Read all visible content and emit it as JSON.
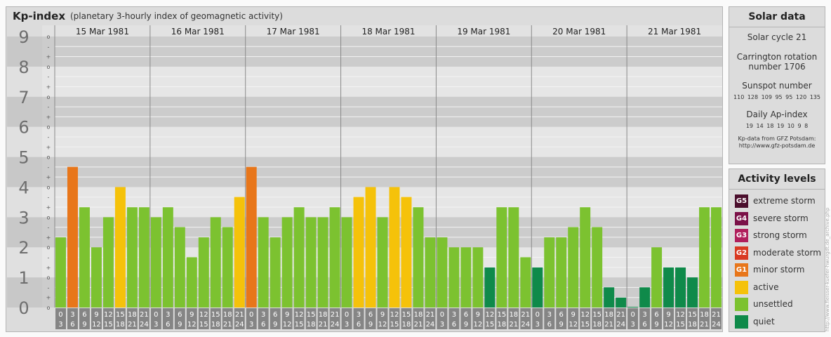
{
  "title": "Kp-index",
  "subtitle": "(planetary 3-hourly index of geomagnetic activity)",
  "solar": {
    "heading": "Solar data",
    "cycle": "Solar cycle 21",
    "carrington_line1": "Carrington rotation",
    "carrington_line2": "number 1706",
    "sunspot_label": "Sunspot number",
    "sunspot_values": "110 128 109 95 95 120 135",
    "ap_label": "Daily Ap-index",
    "ap_values": "19 14 18 19 10 9 8",
    "note_line1": "Kp-data from GFZ Potsdam:",
    "note_line2": "http://www.gfz-potsdam.de"
  },
  "activity": {
    "heading": "Activity levels",
    "levels": [
      {
        "code": "G5",
        "label": "extreme storm",
        "color": "#4b0f2d"
      },
      {
        "code": "G4",
        "label": "severe storm",
        "color": "#7b1148"
      },
      {
        "code": "G3",
        "label": "strong storm",
        "color": "#b01f5c"
      },
      {
        "code": "G2",
        "label": "moderate storm",
        "color": "#d93a22"
      },
      {
        "code": "G1",
        "label": "minor storm",
        "color": "#e8761a"
      },
      {
        "code": "",
        "label": "active",
        "color": "#f5c20a"
      },
      {
        "code": "",
        "label": "unsettled",
        "color": "#7cc230"
      },
      {
        "code": "",
        "label": "quiet",
        "color": "#0f8a4a"
      }
    ]
  },
  "credit": "http://www.fleisser-kuefer-hwurgdt.de_archive.php",
  "chart_data": {
    "type": "bar",
    "y_ticks": [
      "0",
      "1",
      "2",
      "3",
      "4",
      "5",
      "6",
      "7",
      "8",
      "9"
    ],
    "sub_ticks": [
      "o",
      "+",
      "-",
      "o",
      "+",
      "-",
      "o",
      "+",
      "-",
      "o",
      "+",
      "-",
      "o",
      "+",
      "-",
      "o",
      "+",
      "-",
      "o",
      "+",
      "-",
      "o",
      "+",
      "-",
      "o",
      "+",
      "-",
      "o"
    ],
    "ylim": [
      0,
      9
    ],
    "grid": true,
    "days": [
      {
        "date": "15 Mar 1981",
        "kp": [
          2.33,
          4.67,
          3.33,
          2.0,
          3.0,
          4.0,
          3.33,
          3.33
        ]
      },
      {
        "date": "16 Mar 1981",
        "kp": [
          3.0,
          3.33,
          2.67,
          1.67,
          2.33,
          3.0,
          2.67,
          3.67
        ]
      },
      {
        "date": "17 Mar 1981",
        "kp": [
          4.67,
          3.0,
          2.33,
          3.0,
          3.33,
          3.0,
          3.0,
          3.33
        ]
      },
      {
        "date": "18 Mar 1981",
        "kp": [
          3.0,
          3.67,
          4.0,
          3.0,
          4.0,
          3.67,
          3.33,
          2.33
        ]
      },
      {
        "date": "19 Mar 1981",
        "kp": [
          2.33,
          2.0,
          2.0,
          2.0,
          1.33,
          3.33,
          3.33,
          1.67
        ]
      },
      {
        "date": "20 Mar 1981",
        "kp": [
          1.33,
          2.33,
          2.33,
          2.67,
          3.33,
          2.67,
          0.67,
          0.33
        ]
      },
      {
        "date": "21 Mar 1981",
        "kp": [
          0.0,
          0.67,
          2.0,
          1.33,
          1.33,
          1.0,
          3.33,
          3.33
        ]
      }
    ],
    "hour_slots": [
      [
        "0",
        "3"
      ],
      [
        "3",
        "6"
      ],
      [
        "6",
        "9"
      ],
      [
        "9",
        "12"
      ],
      [
        "12",
        "15"
      ],
      [
        "15",
        "18"
      ],
      [
        "18",
        "21"
      ],
      [
        "21",
        "24"
      ]
    ],
    "colors": {
      "quiet": "#0f8a4a",
      "unsettled": "#7cc230",
      "active": "#f5c20a",
      "g1": "#e8761a"
    }
  }
}
